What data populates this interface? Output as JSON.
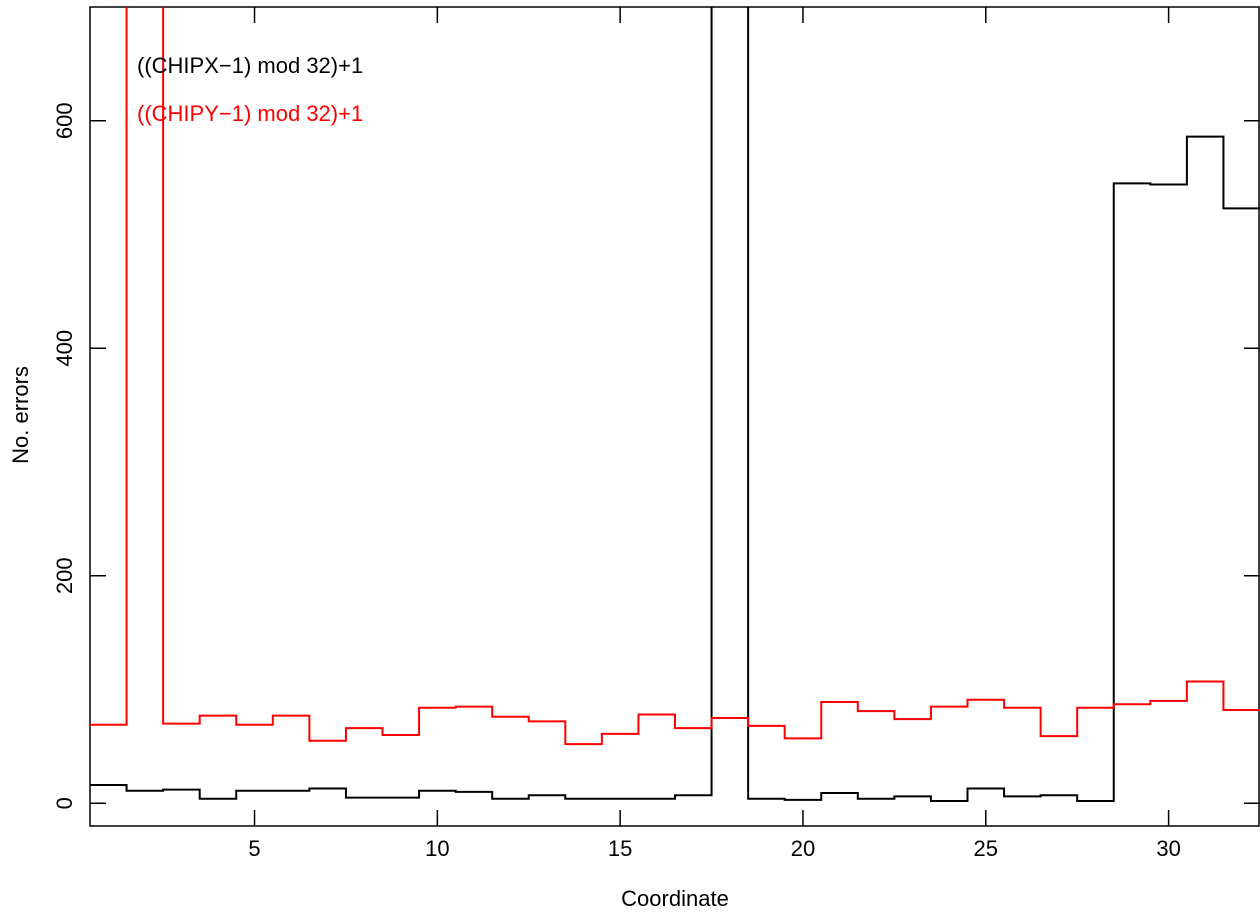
{
  "chart_data": {
    "type": "step",
    "x_label": "Coordinate",
    "y_label": "No. errors",
    "x": [
      1,
      2,
      3,
      4,
      5,
      6,
      7,
      8,
      9,
      10,
      11,
      12,
      13,
      14,
      15,
      16,
      17,
      18,
      19,
      20,
      21,
      22,
      23,
      24,
      25,
      26,
      27,
      28,
      29,
      30,
      31,
      32
    ],
    "series": [
      {
        "name": "((CHIPX−1) mod 32)+1",
        "color": "#000000",
        "values": [
          16,
          11,
          12,
          4,
          11,
          11,
          13,
          5,
          5,
          11,
          10,
          4,
          7,
          4,
          4,
          4,
          7,
          750,
          4,
          3,
          9,
          4,
          6,
          2,
          13,
          6,
          7,
          2,
          545,
          544,
          586,
          523
        ]
      },
      {
        "name": "((CHIPY−1) mod 32)+1",
        "color": "#ff0000",
        "values": [
          69,
          750,
          70,
          77,
          69,
          77,
          55,
          66,
          60,
          84,
          85,
          76,
          72,
          52,
          61,
          78,
          66,
          75,
          68,
          57,
          89,
          81,
          74,
          85,
          91,
          84,
          59,
          84,
          87,
          90,
          107,
          82
        ]
      }
    ],
    "xlim": [
      0.5,
      32.5
    ],
    "xticks": [
      5,
      10,
      15,
      20,
      25,
      30
    ],
    "ylim": [
      -20,
      700
    ],
    "yticks": [
      0,
      200,
      400,
      600
    ]
  }
}
